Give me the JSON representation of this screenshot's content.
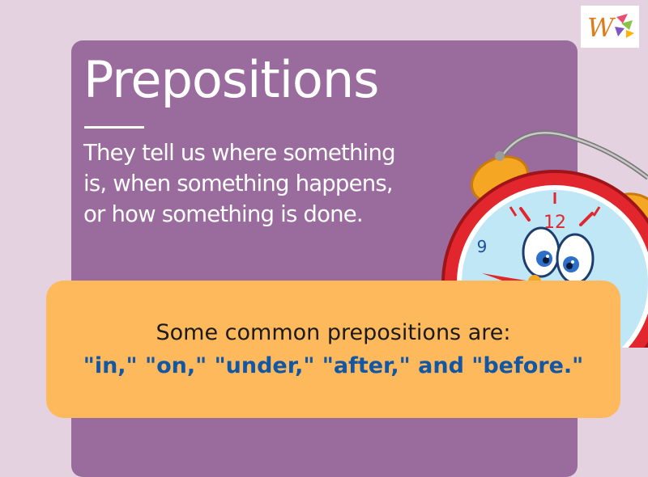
{
  "heading": {
    "title": "Prepositions",
    "description_lines": [
      "They tell us where something",
      "is, when something happens,",
      "or how something is done."
    ]
  },
  "callout": {
    "intro": "Some common prepositions are:",
    "examples": "\"in,\" \"on,\" \"under,\" \"after,\" and \"before.\""
  },
  "clock": {
    "numbers": [
      "12",
      "9"
    ]
  },
  "colors": {
    "background": "#e4d2e0",
    "card": "#9a6c9e",
    "callout": "#fdb95b",
    "examples_text": "#1257a6",
    "clock_body": "#e2262d"
  },
  "icons": [
    "alarm-clock-character-icon",
    "brand-logo-icon"
  ]
}
